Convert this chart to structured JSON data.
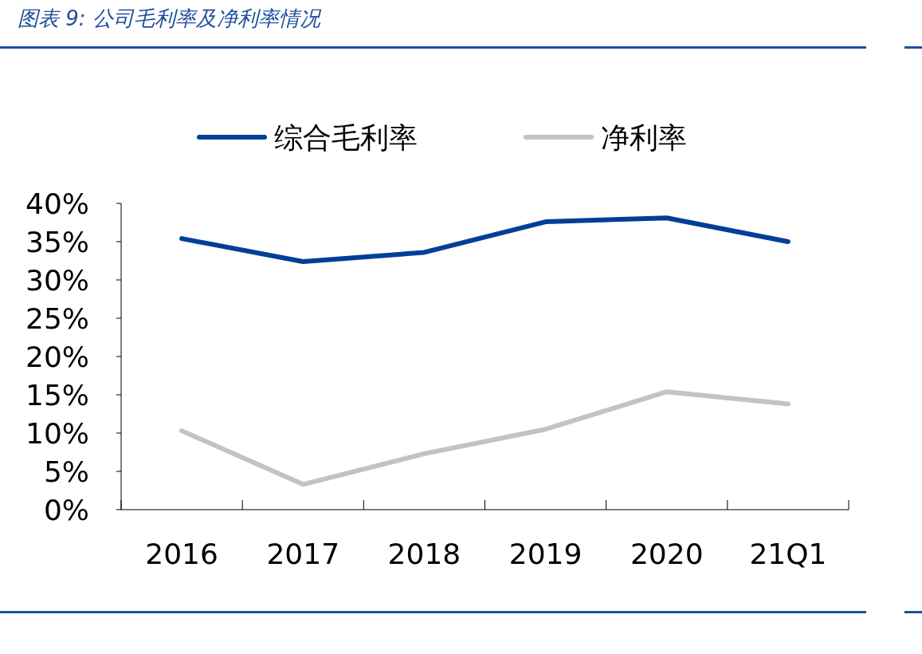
{
  "chart_data": {
    "type": "line",
    "title": "图表 9: 公司毛利率及净利率情况",
    "categories": [
      "2016",
      "2017",
      "2018",
      "2019",
      "2020",
      "21Q1"
    ],
    "series": [
      {
        "name": "综合毛利率",
        "color": "#003f98",
        "values": [
          35.4,
          32.4,
          33.6,
          37.6,
          38.1,
          35.0
        ]
      },
      {
        "name": "净利率",
        "color": "#c3c3c3",
        "values": [
          10.3,
          3.3,
          7.3,
          10.5,
          15.4,
          13.8
        ]
      }
    ],
    "ylim": [
      0,
      40
    ],
    "yticks": [
      {
        "value": 0,
        "label": "0%"
      },
      {
        "value": 5,
        "label": "5%"
      },
      {
        "value": 10,
        "label": "10%"
      },
      {
        "value": 15,
        "label": "15%"
      },
      {
        "value": 20,
        "label": "20%"
      },
      {
        "value": 25,
        "label": "25%"
      },
      {
        "value": 30,
        "label": "30%"
      },
      {
        "value": 35,
        "label": "35%"
      },
      {
        "value": 40,
        "label": "40%"
      }
    ],
    "grid": false,
    "legend": "top",
    "marker": "none",
    "line_style": "solid"
  }
}
